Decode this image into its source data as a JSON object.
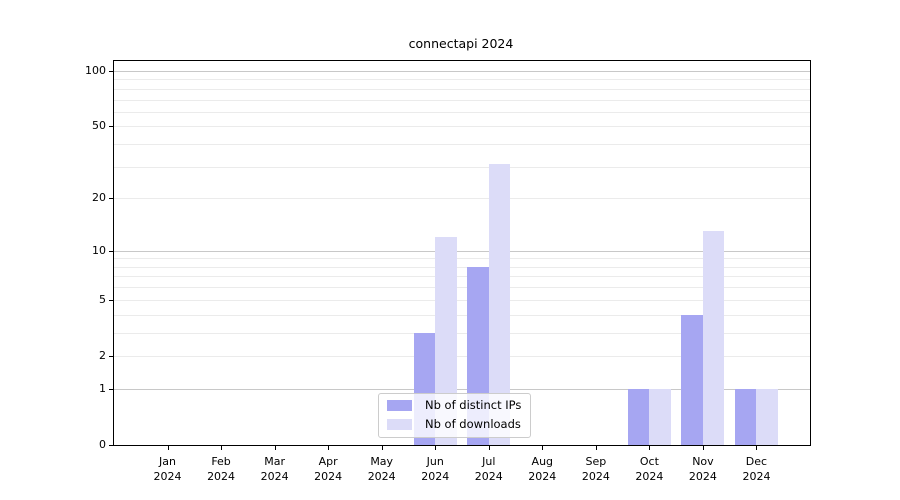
{
  "chart_data": {
    "type": "bar",
    "title": "connectapi 2024",
    "categories": [
      "Jan 2024",
      "Feb 2024",
      "Mar 2024",
      "Apr 2024",
      "May 2024",
      "Jun 2024",
      "Jul 2024",
      "Aug 2024",
      "Sep 2024",
      "Oct 2024",
      "Nov 2024",
      "Dec 2024"
    ],
    "series": [
      {
        "name": "Nb of distinct IPs",
        "color": "#a6a6f2",
        "values": [
          0,
          0,
          0,
          0,
          0,
          3,
          8,
          0,
          0,
          1,
          4,
          1
        ]
      },
      {
        "name": "Nb of downloads",
        "color": "#dcdcf8",
        "values": [
          0,
          0,
          0,
          0,
          0,
          12,
          31,
          0,
          0,
          1,
          13,
          1
        ]
      }
    ],
    "xlabel": "",
    "ylabel": "",
    "y_axis": {
      "scale": "log1p",
      "ylim": [
        0,
        113.3
      ],
      "ticks": [
        0,
        1,
        2,
        5,
        10,
        20,
        50,
        100
      ],
      "major_gridlines": [
        1,
        10,
        100
      ],
      "minor_gridlines": [
        2,
        3,
        4,
        5,
        6,
        7,
        8,
        9,
        20,
        30,
        40,
        50,
        60,
        70,
        80,
        90
      ]
    },
    "legend": {
      "position": "bottom-center"
    },
    "grid": true,
    "colors": {
      "grid_minor": "#ebebeb",
      "grid_major": "#c8c8c8",
      "axis": "#000000"
    }
  }
}
